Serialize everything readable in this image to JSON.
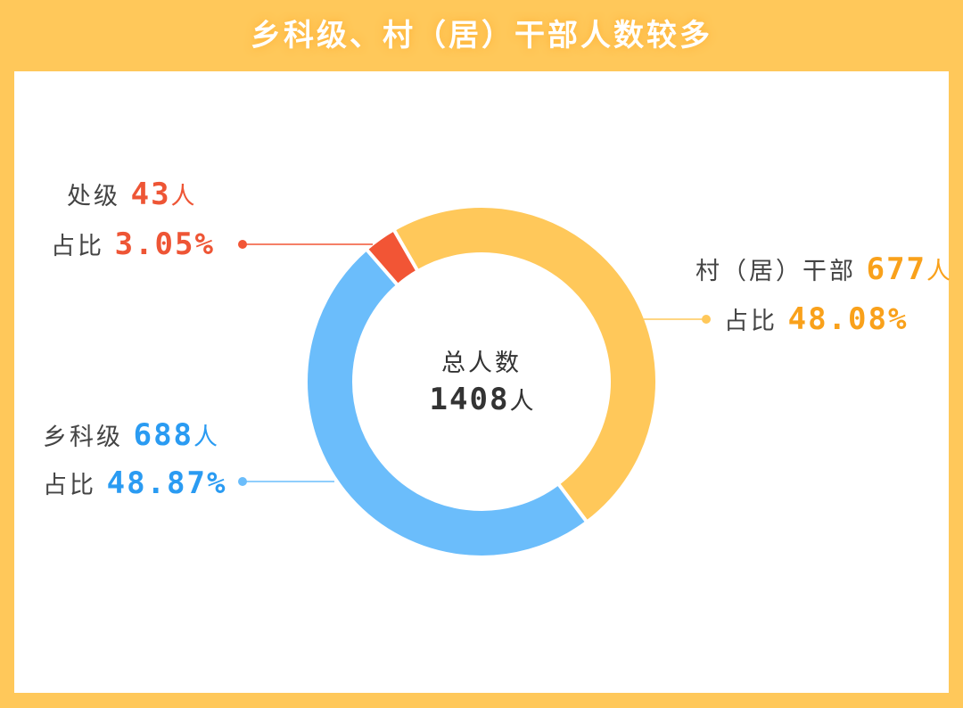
{
  "title": "乡科级、村（居）干部人数较多",
  "chart_data": {
    "type": "pie",
    "donut": true,
    "title": "乡科级、村（居）干部人数较多",
    "center_label": "总人数",
    "total": 1408,
    "total_unit": "人",
    "share_label": "占比",
    "slices": [
      {
        "name": "村（居）干部",
        "value": 677,
        "unit": "人",
        "percent": "48.08%",
        "color": "#ffc85a",
        "text_color": "#f9a11b"
      },
      {
        "name": "乡科级",
        "value": 688,
        "unit": "人",
        "percent": "48.87%",
        "color": "#6bbdfb",
        "text_color": "#2a9bf2"
      },
      {
        "name": "处级",
        "value": 43,
        "unit": "人",
        "percent": "3.05%",
        "color": "#f25535",
        "text_color": "#ee5535"
      }
    ]
  }
}
